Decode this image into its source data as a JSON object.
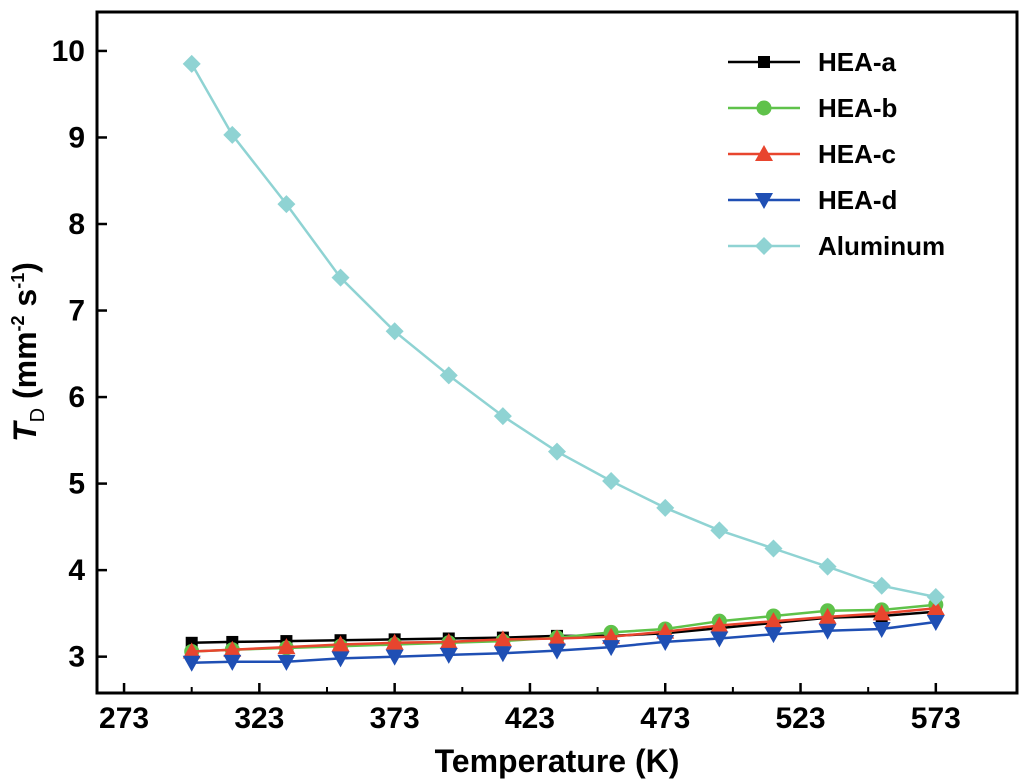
{
  "chart_data": {
    "type": "line",
    "title": "",
    "xlabel": "Temperature (K)",
    "ylabel": {
      "symbol": "T",
      "subscript": "D",
      "unit_open": "(mm",
      "unit_exp1": "-2",
      "unit_mid": " s",
      "unit_exp2": "-1",
      "unit_close": ")"
    },
    "xlim": [
      263,
      603
    ],
    "ylim": [
      2.58,
      10.45
    ],
    "xticks": [
      273,
      323,
      373,
      423,
      473,
      523,
      573
    ],
    "xtick_labels": [
      "273",
      "323",
      "373",
      "423",
      "473",
      "523",
      "573"
    ],
    "yticks": [
      3,
      4,
      5,
      6,
      7,
      8,
      9,
      10
    ],
    "ytick_labels": [
      "3",
      "4",
      "5",
      "6",
      "7",
      "8",
      "9",
      "10"
    ],
    "legend_position": "top-right",
    "x": [
      298,
      313,
      333,
      353,
      373,
      393,
      413,
      433,
      453,
      473,
      493,
      513,
      533,
      553,
      573
    ],
    "series": [
      {
        "name": "HEA-a",
        "color": "#000000",
        "marker": "square",
        "values": [
          3.16,
          3.17,
          3.18,
          3.19,
          3.2,
          3.21,
          3.22,
          3.24,
          3.24,
          3.27,
          3.33,
          3.39,
          3.45,
          3.47,
          3.52
        ]
      },
      {
        "name": "HEA-b",
        "color": "#5fc24a",
        "marker": "circle",
        "values": [
          3.06,
          3.08,
          3.1,
          3.12,
          3.14,
          3.16,
          3.18,
          3.22,
          3.28,
          3.32,
          3.41,
          3.47,
          3.53,
          3.54,
          3.6
        ]
      },
      {
        "name": "HEA-c",
        "color": "#e8452e",
        "marker": "triangle-up",
        "values": [
          3.06,
          3.08,
          3.11,
          3.14,
          3.16,
          3.17,
          3.2,
          3.21,
          3.23,
          3.29,
          3.36,
          3.41,
          3.46,
          3.5,
          3.56
        ]
      },
      {
        "name": "HEA-d",
        "color": "#1f4fb4",
        "marker": "triangle-down",
        "values": [
          2.93,
          2.94,
          2.94,
          2.98,
          3.0,
          3.02,
          3.04,
          3.07,
          3.11,
          3.17,
          3.21,
          3.26,
          3.3,
          3.32,
          3.4
        ]
      },
      {
        "name": "Aluminum",
        "color": "#8fd3d3",
        "marker": "diamond",
        "values": [
          9.85,
          9.03,
          8.23,
          7.38,
          6.76,
          6.25,
          5.78,
          5.37,
          5.03,
          4.72,
          4.46,
          4.25,
          4.04,
          3.82,
          3.69
        ]
      }
    ]
  }
}
